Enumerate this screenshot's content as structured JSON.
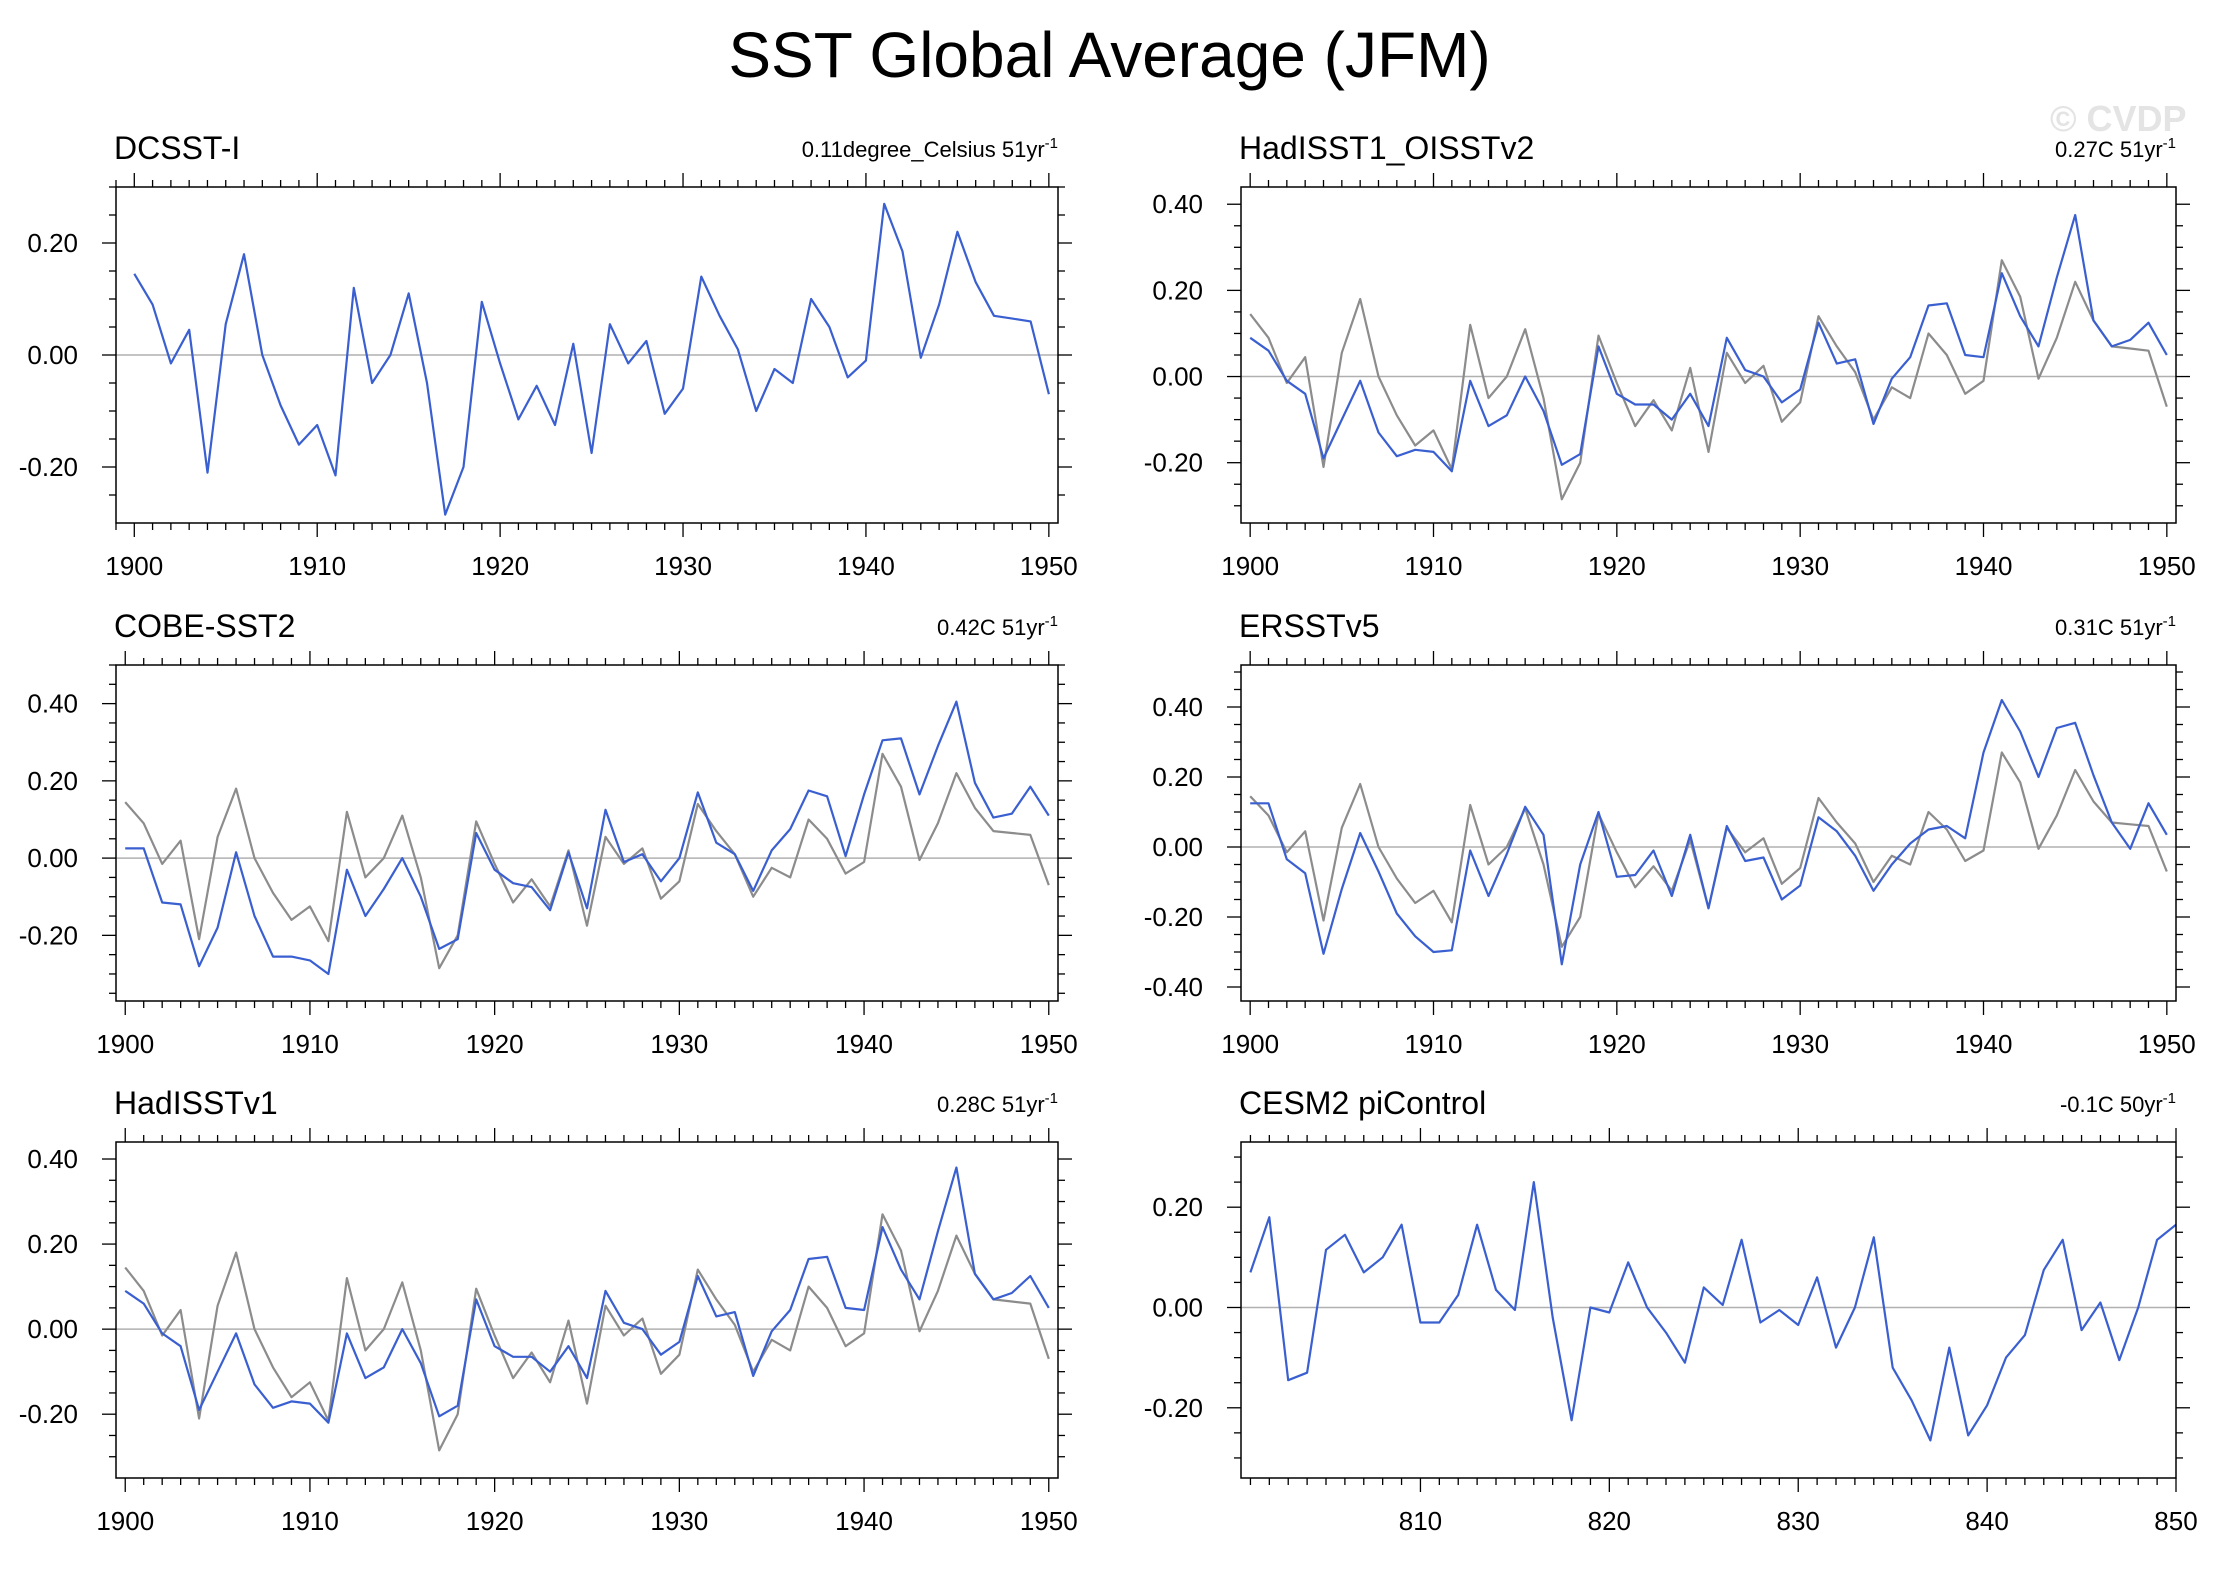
{
  "title": "SST Global Average (JFM)",
  "watermark": "© CVDP",
  "colors": {
    "series": "#3a5fd0",
    "reference": "#8c8c8c",
    "zero_line": "#b0b0b0",
    "frame": "#000000"
  },
  "chart_data": [
    {
      "type": "line",
      "title": "DCSST-I",
      "trend": {
        "value": "0.11degree_Celsius",
        "period": "51yr",
        "exponent": "-1"
      },
      "xlim": [
        1899,
        1950.5
      ],
      "ylim": [
        -0.3,
        0.3
      ],
      "xticks": [
        1900,
        1910,
        1920,
        1930,
        1940,
        1950
      ],
      "yticks": [
        -0.2,
        0,
        0.2
      ],
      "ytick_labels": [
        "-0.20",
        "0.00",
        "0.20"
      ],
      "x_start": 1900,
      "series": [
        {
          "role": "main",
          "values": [
            0.145,
            0.09,
            -0.015,
            0.045,
            -0.21,
            0.055,
            0.18,
            0.0,
            -0.09,
            -0.16,
            -0.125,
            -0.215,
            0.12,
            -0.05,
            0.0,
            0.11,
            -0.05,
            -0.285,
            -0.2,
            0.095,
            -0.015,
            -0.115,
            -0.055,
            -0.125,
            0.02,
            -0.175,
            0.055,
            -0.015,
            0.025,
            -0.105,
            -0.06,
            0.14,
            0.07,
            0.01,
            -0.1,
            -0.025,
            -0.05,
            0.1,
            0.05,
            -0.04,
            -0.01,
            0.27,
            0.185,
            -0.005,
            0.09,
            0.22,
            0.13,
            0.07,
            0.065,
            0.06,
            -0.07
          ]
        }
      ]
    },
    {
      "type": "line",
      "title": "HadISST1_OISSTv2",
      "trend": {
        "value": "0.27C",
        "period": "51yr",
        "exponent": "-1"
      },
      "xlim": [
        1899.5,
        1950.5
      ],
      "ylim": [
        -0.34,
        0.44
      ],
      "xticks": [
        1900,
        1910,
        1920,
        1930,
        1940,
        1950
      ],
      "yticks": [
        -0.2,
        0,
        0.2,
        0.4
      ],
      "ytick_labels": [
        "-0.20",
        "0.00",
        "0.20",
        "0.40"
      ],
      "x_start": 1900,
      "series": [
        {
          "role": "reference",
          "values": [
            0.145,
            0.09,
            -0.015,
            0.045,
            -0.21,
            0.055,
            0.18,
            0.0,
            -0.09,
            -0.16,
            -0.125,
            -0.215,
            0.12,
            -0.05,
            0.0,
            0.11,
            -0.05,
            -0.285,
            -0.2,
            0.095,
            -0.015,
            -0.115,
            -0.055,
            -0.125,
            0.02,
            -0.175,
            0.055,
            -0.015,
            0.025,
            -0.105,
            -0.06,
            0.14,
            0.07,
            0.01,
            -0.1,
            -0.025,
            -0.05,
            0.1,
            0.05,
            -0.04,
            -0.01,
            0.27,
            0.185,
            -0.005,
            0.09,
            0.22,
            0.13,
            0.07,
            0.065,
            0.06,
            -0.07
          ]
        },
        {
          "role": "main",
          "values": [
            0.09,
            0.06,
            -0.01,
            -0.04,
            -0.19,
            -0.1,
            -0.01,
            -0.13,
            -0.185,
            -0.17,
            -0.175,
            -0.22,
            -0.01,
            -0.115,
            -0.09,
            0.0,
            -0.08,
            -0.205,
            -0.18,
            0.07,
            -0.04,
            -0.065,
            -0.065,
            -0.1,
            -0.04,
            -0.115,
            0.09,
            0.015,
            0.0,
            -0.06,
            -0.03,
            0.125,
            0.03,
            0.04,
            -0.11,
            -0.005,
            0.045,
            0.165,
            0.17,
            0.05,
            0.045,
            0.24,
            0.14,
            0.07,
            0.23,
            0.375,
            0.13,
            0.07,
            0.085,
            0.125,
            0.05
          ]
        }
      ]
    },
    {
      "type": "line",
      "title": "COBE-SST2",
      "trend": {
        "value": "0.42C",
        "period": "51yr",
        "exponent": "-1"
      },
      "xlim": [
        1899.5,
        1950.5
      ],
      "ylim": [
        -0.37,
        0.5
      ],
      "xticks": [
        1900,
        1910,
        1920,
        1930,
        1940,
        1950
      ],
      "yticks": [
        -0.2,
        0,
        0.2,
        0.4
      ],
      "ytick_labels": [
        "-0.20",
        "0.00",
        "0.20",
        "0.40"
      ],
      "x_start": 1900,
      "series": [
        {
          "role": "reference",
          "values": [
            0.145,
            0.09,
            -0.015,
            0.045,
            -0.21,
            0.055,
            0.18,
            0.0,
            -0.09,
            -0.16,
            -0.125,
            -0.215,
            0.12,
            -0.05,
            0.0,
            0.11,
            -0.05,
            -0.285,
            -0.2,
            0.095,
            -0.015,
            -0.115,
            -0.055,
            -0.125,
            0.02,
            -0.175,
            0.055,
            -0.015,
            0.025,
            -0.105,
            -0.06,
            0.14,
            0.07,
            0.01,
            -0.1,
            -0.025,
            -0.05,
            0.1,
            0.05,
            -0.04,
            -0.01,
            0.27,
            0.185,
            -0.005,
            0.09,
            0.22,
            0.13,
            0.07,
            0.065,
            0.06,
            -0.07
          ]
        },
        {
          "role": "main",
          "values": [
            0.025,
            0.025,
            -0.115,
            -0.12,
            -0.28,
            -0.18,
            0.015,
            -0.15,
            -0.255,
            -0.255,
            -0.265,
            -0.3,
            -0.03,
            -0.15,
            -0.08,
            0.0,
            -0.1,
            -0.235,
            -0.21,
            0.065,
            -0.03,
            -0.065,
            -0.075,
            -0.135,
            0.015,
            -0.13,
            0.125,
            -0.01,
            0.01,
            -0.06,
            0.0,
            0.17,
            0.04,
            0.01,
            -0.085,
            0.02,
            0.075,
            0.175,
            0.16,
            0.005,
            0.165,
            0.305,
            0.31,
            0.165,
            0.29,
            0.405,
            0.195,
            0.105,
            0.115,
            0.185,
            0.11
          ]
        }
      ]
    },
    {
      "type": "line",
      "title": "ERSSTv5",
      "trend": {
        "value": "0.31C",
        "period": "51yr",
        "exponent": "-1"
      },
      "xlim": [
        1899.5,
        1950.5
      ],
      "ylim": [
        -0.44,
        0.52
      ],
      "xticks": [
        1900,
        1910,
        1920,
        1930,
        1940,
        1950
      ],
      "yticks": [
        -0.4,
        -0.2,
        0,
        0.2,
        0.4
      ],
      "ytick_labels": [
        "-0.40",
        "-0.20",
        "0.00",
        "0.20",
        "0.40"
      ],
      "x_start": 1900,
      "series": [
        {
          "role": "reference",
          "values": [
            0.145,
            0.09,
            -0.015,
            0.045,
            -0.21,
            0.055,
            0.18,
            0.0,
            -0.09,
            -0.16,
            -0.125,
            -0.215,
            0.12,
            -0.05,
            0.0,
            0.11,
            -0.05,
            -0.285,
            -0.2,
            0.095,
            -0.015,
            -0.115,
            -0.055,
            -0.125,
            0.02,
            -0.175,
            0.055,
            -0.015,
            0.025,
            -0.105,
            -0.06,
            0.14,
            0.07,
            0.01,
            -0.1,
            -0.025,
            -0.05,
            0.1,
            0.05,
            -0.04,
            -0.01,
            0.27,
            0.185,
            -0.005,
            0.09,
            0.22,
            0.13,
            0.07,
            0.065,
            0.06,
            -0.07
          ]
        },
        {
          "role": "main",
          "values": [
            0.125,
            0.125,
            -0.035,
            -0.075,
            -0.305,
            -0.12,
            0.04,
            -0.07,
            -0.19,
            -0.255,
            -0.3,
            -0.295,
            -0.01,
            -0.14,
            -0.02,
            0.115,
            0.035,
            -0.335,
            -0.05,
            0.1,
            -0.085,
            -0.08,
            -0.01,
            -0.14,
            0.035,
            -0.175,
            0.06,
            -0.04,
            -0.03,
            -0.15,
            -0.11,
            0.085,
            0.045,
            -0.025,
            -0.125,
            -0.05,
            0.01,
            0.05,
            0.06,
            0.025,
            0.27,
            0.42,
            0.33,
            0.2,
            0.34,
            0.355,
            0.205,
            0.07,
            -0.005,
            0.125,
            0.035
          ]
        }
      ]
    },
    {
      "type": "line",
      "title": "HadISSTv1",
      "trend": {
        "value": "0.28C",
        "period": "51yr",
        "exponent": "-1"
      },
      "xlim": [
        1899.5,
        1950.5
      ],
      "ylim": [
        -0.35,
        0.44
      ],
      "xticks": [
        1900,
        1910,
        1920,
        1930,
        1940,
        1950
      ],
      "yticks": [
        -0.2,
        0,
        0.2,
        0.4
      ],
      "ytick_labels": [
        "-0.20",
        "0.00",
        "0.20",
        "0.40"
      ],
      "x_start": 1900,
      "series": [
        {
          "role": "reference",
          "values": [
            0.145,
            0.09,
            -0.015,
            0.045,
            -0.21,
            0.055,
            0.18,
            0.0,
            -0.09,
            -0.16,
            -0.125,
            -0.215,
            0.12,
            -0.05,
            0.0,
            0.11,
            -0.05,
            -0.285,
            -0.2,
            0.095,
            -0.015,
            -0.115,
            -0.055,
            -0.125,
            0.02,
            -0.175,
            0.055,
            -0.015,
            0.025,
            -0.105,
            -0.06,
            0.14,
            0.07,
            0.01,
            -0.1,
            -0.025,
            -0.05,
            0.1,
            0.05,
            -0.04,
            -0.01,
            0.27,
            0.185,
            -0.005,
            0.09,
            0.22,
            0.13,
            0.07,
            0.065,
            0.06,
            -0.07
          ]
        },
        {
          "role": "main",
          "values": [
            0.09,
            0.06,
            -0.01,
            -0.04,
            -0.19,
            -0.1,
            -0.01,
            -0.13,
            -0.185,
            -0.17,
            -0.175,
            -0.22,
            -0.01,
            -0.115,
            -0.09,
            0.0,
            -0.08,
            -0.205,
            -0.18,
            0.07,
            -0.04,
            -0.065,
            -0.065,
            -0.1,
            -0.04,
            -0.115,
            0.09,
            0.015,
            0.0,
            -0.06,
            -0.03,
            0.125,
            0.03,
            0.04,
            -0.11,
            -0.005,
            0.045,
            0.165,
            0.17,
            0.05,
            0.045,
            0.24,
            0.14,
            0.07,
            0.23,
            0.38,
            0.13,
            0.07,
            0.085,
            0.125,
            0.05
          ]
        }
      ]
    },
    {
      "type": "line",
      "title": "CESM2 piControl",
      "trend": {
        "value": "-0.1C",
        "period": "50yr",
        "exponent": "-1"
      },
      "xlim": [
        800.5,
        850
      ],
      "ylim": [
        -0.34,
        0.33
      ],
      "xticks": [
        810,
        820,
        830,
        840,
        850
      ],
      "yticks": [
        -0.2,
        0,
        0.2
      ],
      "ytick_labels": [
        "-0.20",
        "0.00",
        "0.20"
      ],
      "x_start": 801,
      "series": [
        {
          "role": "main",
          "values": [
            0.07,
            0.18,
            -0.145,
            -0.13,
            0.115,
            0.145,
            0.07,
            0.1,
            0.165,
            -0.03,
            -0.03,
            0.025,
            0.165,
            0.035,
            -0.005,
            0.25,
            -0.02,
            -0.225,
            0.0,
            -0.01,
            0.09,
            0.0,
            -0.05,
            -0.11,
            0.04,
            0.005,
            0.135,
            -0.03,
            -0.005,
            -0.035,
            0.06,
            -0.08,
            0.0,
            0.14,
            -0.12,
            -0.185,
            -0.265,
            -0.08,
            -0.255,
            -0.195,
            -0.1,
            -0.055,
            0.075,
            0.135,
            -0.045,
            0.01,
            -0.105,
            0.0,
            0.135,
            0.165
          ]
        }
      ]
    }
  ]
}
